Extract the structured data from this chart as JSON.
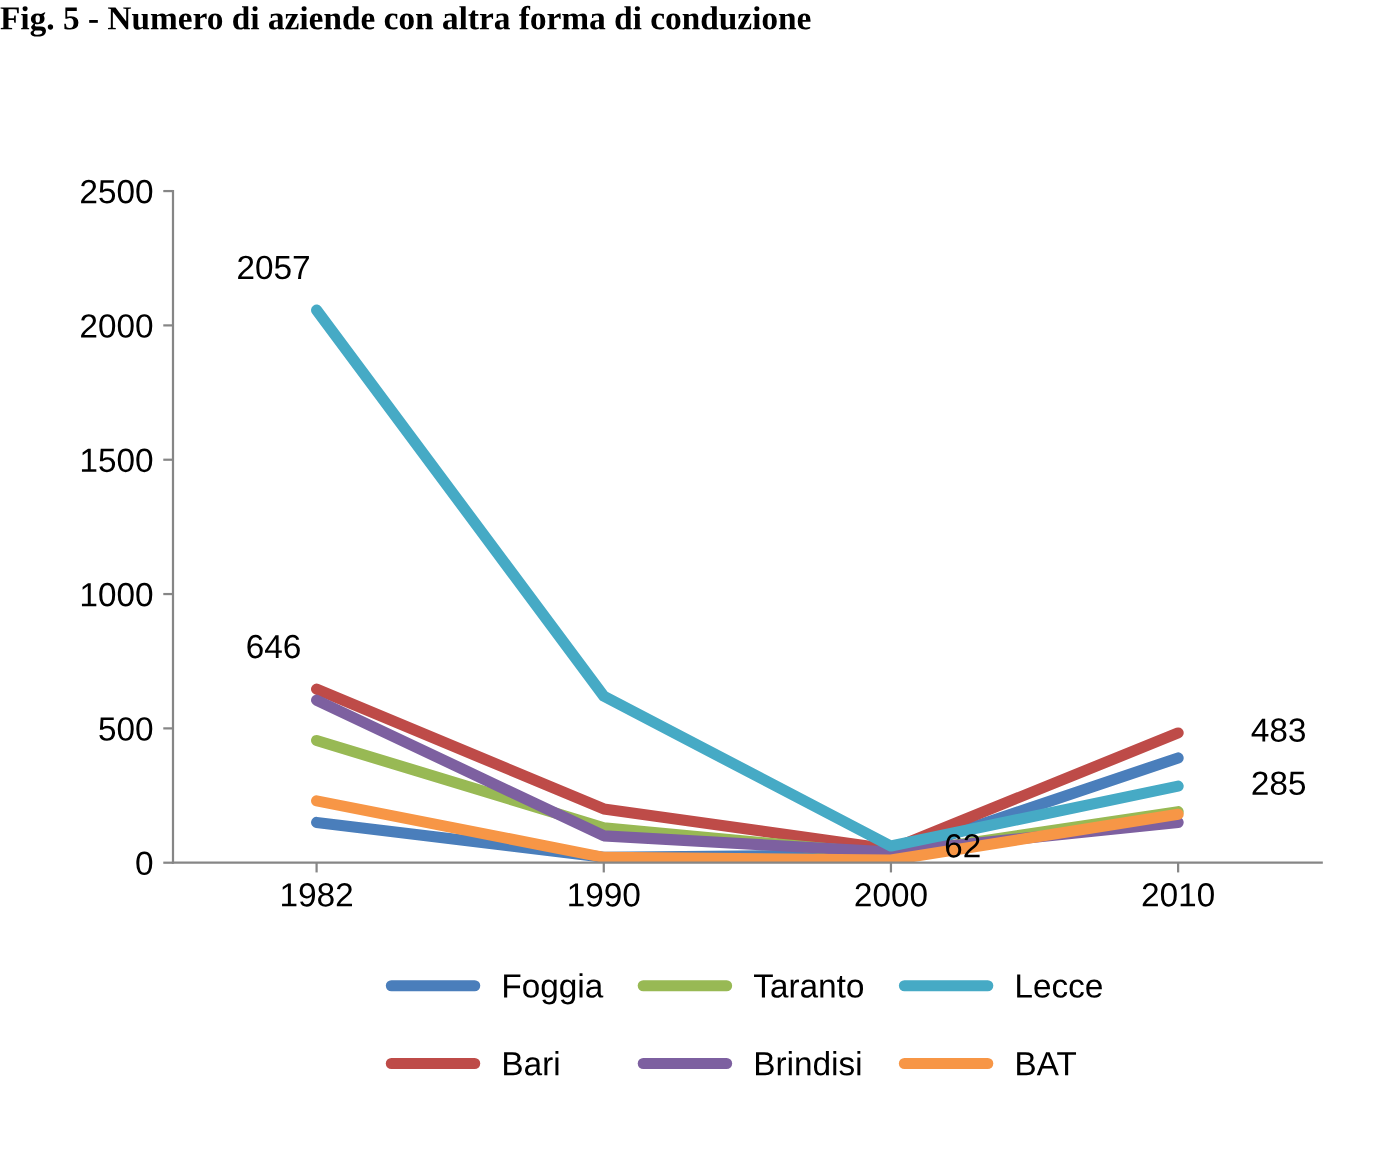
{
  "chart_data": {
    "type": "line",
    "title": "Fig. 5 - Numero di aziende con altra forma di conduzione",
    "categories": [
      "1982",
      "1990",
      "2000",
      "2010"
    ],
    "series": [
      {
        "name": "Foggia",
        "color": "#4a7ebb",
        "values": [
          150,
          20,
          30,
          390
        ]
      },
      {
        "name": "Bari",
        "color": "#be4b48",
        "values": [
          646,
          200,
          50,
          483
        ]
      },
      {
        "name": "Taranto",
        "color": "#98b954",
        "values": [
          455,
          130,
          30,
          190
        ]
      },
      {
        "name": "Brindisi",
        "color": "#7d60a0",
        "values": [
          605,
          100,
          40,
          150
        ]
      },
      {
        "name": "Lecce",
        "color": "#46aac5",
        "values": [
          2057,
          620,
          62,
          285
        ]
      },
      {
        "name": "BAT",
        "color": "#f79646",
        "values": [
          230,
          20,
          10,
          180
        ]
      }
    ],
    "annotations": [
      {
        "text": "2057",
        "x": "1982",
        "y": 2057
      },
      {
        "text": "646",
        "x": "1982",
        "y": 646
      },
      {
        "text": "62",
        "x": "2000",
        "y": 62
      },
      {
        "text": "483",
        "x": "2010",
        "y": 483
      },
      {
        "text": "285",
        "x": "2010",
        "y": 285
      }
    ],
    "ylim": [
      0,
      2500
    ],
    "yticks": [
      0,
      500,
      1000,
      1500,
      2000,
      2500
    ],
    "grid": false,
    "legend": "bottom",
    "marker": "none",
    "line_style": "solid"
  }
}
